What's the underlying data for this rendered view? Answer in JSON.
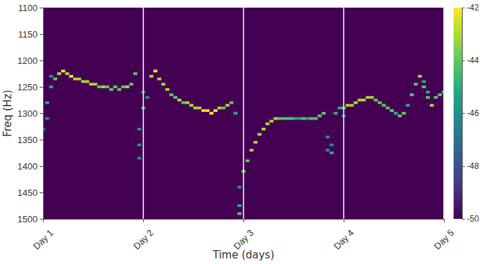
{
  "chart_data": {
    "type": "heatmap",
    "xlabel": "Time (days)",
    "ylabel": "Freq (Hz)",
    "xlim": [
      1,
      5
    ],
    "xticks": [
      {
        "value": 1,
        "label": "Day 1"
      },
      {
        "value": 2,
        "label": "Day 2"
      },
      {
        "value": 3,
        "label": "Day 3"
      },
      {
        "value": 4,
        "label": "Day 4"
      },
      {
        "value": 5,
        "label": "Day 5"
      }
    ],
    "ylim": [
      1500,
      1100
    ],
    "yticks": [
      1100,
      1150,
      1200,
      1250,
      1300,
      1350,
      1400,
      1450,
      1500
    ],
    "grid": true,
    "color": "viridis",
    "colorbar": {
      "range": [
        -50,
        -42
      ],
      "ticks": [
        -50,
        -48,
        -46,
        -44,
        -42
      ]
    },
    "x": [
      1.0,
      1.04,
      1.08,
      1.12,
      1.16,
      1.2,
      1.24,
      1.28,
      1.32,
      1.36,
      1.4,
      1.44,
      1.48,
      1.52,
      1.56,
      1.6,
      1.64,
      1.68,
      1.72,
      1.76,
      1.8,
      1.84,
      1.88,
      1.92,
      1.96,
      2.0,
      2.04,
      2.08,
      2.12,
      2.16,
      2.2,
      2.24,
      2.28,
      2.32,
      2.36,
      2.4,
      2.44,
      2.48,
      2.52,
      2.56,
      2.6,
      2.64,
      2.68,
      2.72,
      2.76,
      2.8,
      2.84,
      2.88,
      2.92,
      2.96,
      3.0,
      3.04,
      3.08,
      3.12,
      3.16,
      3.2,
      3.24,
      3.28,
      3.32,
      3.36,
      3.4,
      3.44,
      3.48,
      3.52,
      3.56,
      3.6,
      3.64,
      3.68,
      3.72,
      3.76,
      3.8,
      3.84,
      3.88,
      3.92,
      3.96,
      4.0,
      4.04,
      4.08,
      4.12,
      4.16,
      4.2,
      4.24,
      4.28,
      4.32,
      4.36,
      4.4,
      4.44,
      4.48,
      4.52,
      4.56,
      4.6,
      4.64,
      4.68,
      4.72,
      4.76,
      4.8,
      4.84,
      4.88,
      4.92,
      4.96,
      5.0,
      1.04,
      1.08,
      1.96,
      1.96,
      2.0,
      2.96,
      2.96,
      3.84,
      3.88,
      4.0,
      4.8,
      4.84
    ],
    "y": [
      1330,
      1280,
      1250,
      1235,
      1225,
      1220,
      1225,
      1230,
      1235,
      1235,
      1240,
      1240,
      1245,
      1245,
      1250,
      1250,
      1250,
      1255,
      1250,
      1255,
      1250,
      1250,
      1245,
      1225,
      1360,
      1290,
      1270,
      1230,
      1220,
      1235,
      1245,
      1255,
      1265,
      1270,
      1275,
      1280,
      1280,
      1285,
      1290,
      1290,
      1295,
      1295,
      1300,
      1295,
      1290,
      1290,
      1285,
      1280,
      1300,
      1475,
      1410,
      1390,
      1370,
      1355,
      1340,
      1330,
      1320,
      1315,
      1310,
      1310,
      1310,
      1310,
      1310,
      1310,
      1310,
      1310,
      1310,
      1310,
      1310,
      1305,
      1300,
      1345,
      1375,
      1300,
      1290,
      1290,
      1285,
      1285,
      1280,
      1275,
      1275,
      1270,
      1270,
      1275,
      1280,
      1285,
      1290,
      1295,
      1300,
      1305,
      1300,
      1285,
      1265,
      1245,
      1230,
      1250,
      1270,
      1285,
      1270,
      1265,
      1260,
      1310,
      1230,
      1385,
      1330,
      1260,
      1490,
      1440,
      1370,
      1360,
      1305,
      1240,
      1260
    ],
    "z": [
      -46,
      -45,
      -45,
      -44,
      -43,
      -42,
      -43,
      -42,
      -43,
      -43,
      -43,
      -43,
      -43,
      -43,
      -44,
      -43,
      -44,
      -44,
      -44,
      -44,
      -44,
      -43,
      -44,
      -44,
      -46,
      -45,
      -46,
      -43,
      -42,
      -43,
      -43,
      -43,
      -44,
      -44,
      -43,
      -44,
      -43,
      -43,
      -43,
      -43,
      -42,
      -42,
      -42,
      -42,
      -43,
      -44,
      -43,
      -44,
      -45,
      -45,
      -44,
      -44,
      -43,
      -43,
      -43,
      -43,
      -43,
      -43,
      -43,
      -44,
      -44,
      -44,
      -44,
      -45,
      -45,
      -44,
      -45,
      -44,
      -44,
      -44,
      -44,
      -46,
      -45,
      -45,
      -45,
      -44,
      -43,
      -43,
      -43,
      -43,
      -43,
      -43,
      -43,
      -44,
      -44,
      -44,
      -44,
      -44,
      -45,
      -44,
      -44,
      -45,
      -44,
      -44,
      -43,
      -44,
      -44,
      -43,
      -44,
      -44,
      -45,
      -46,
      -46,
      -46,
      -46,
      -46,
      -44,
      -46,
      -46,
      -46,
      -46,
      -45,
      -45
    ]
  }
}
